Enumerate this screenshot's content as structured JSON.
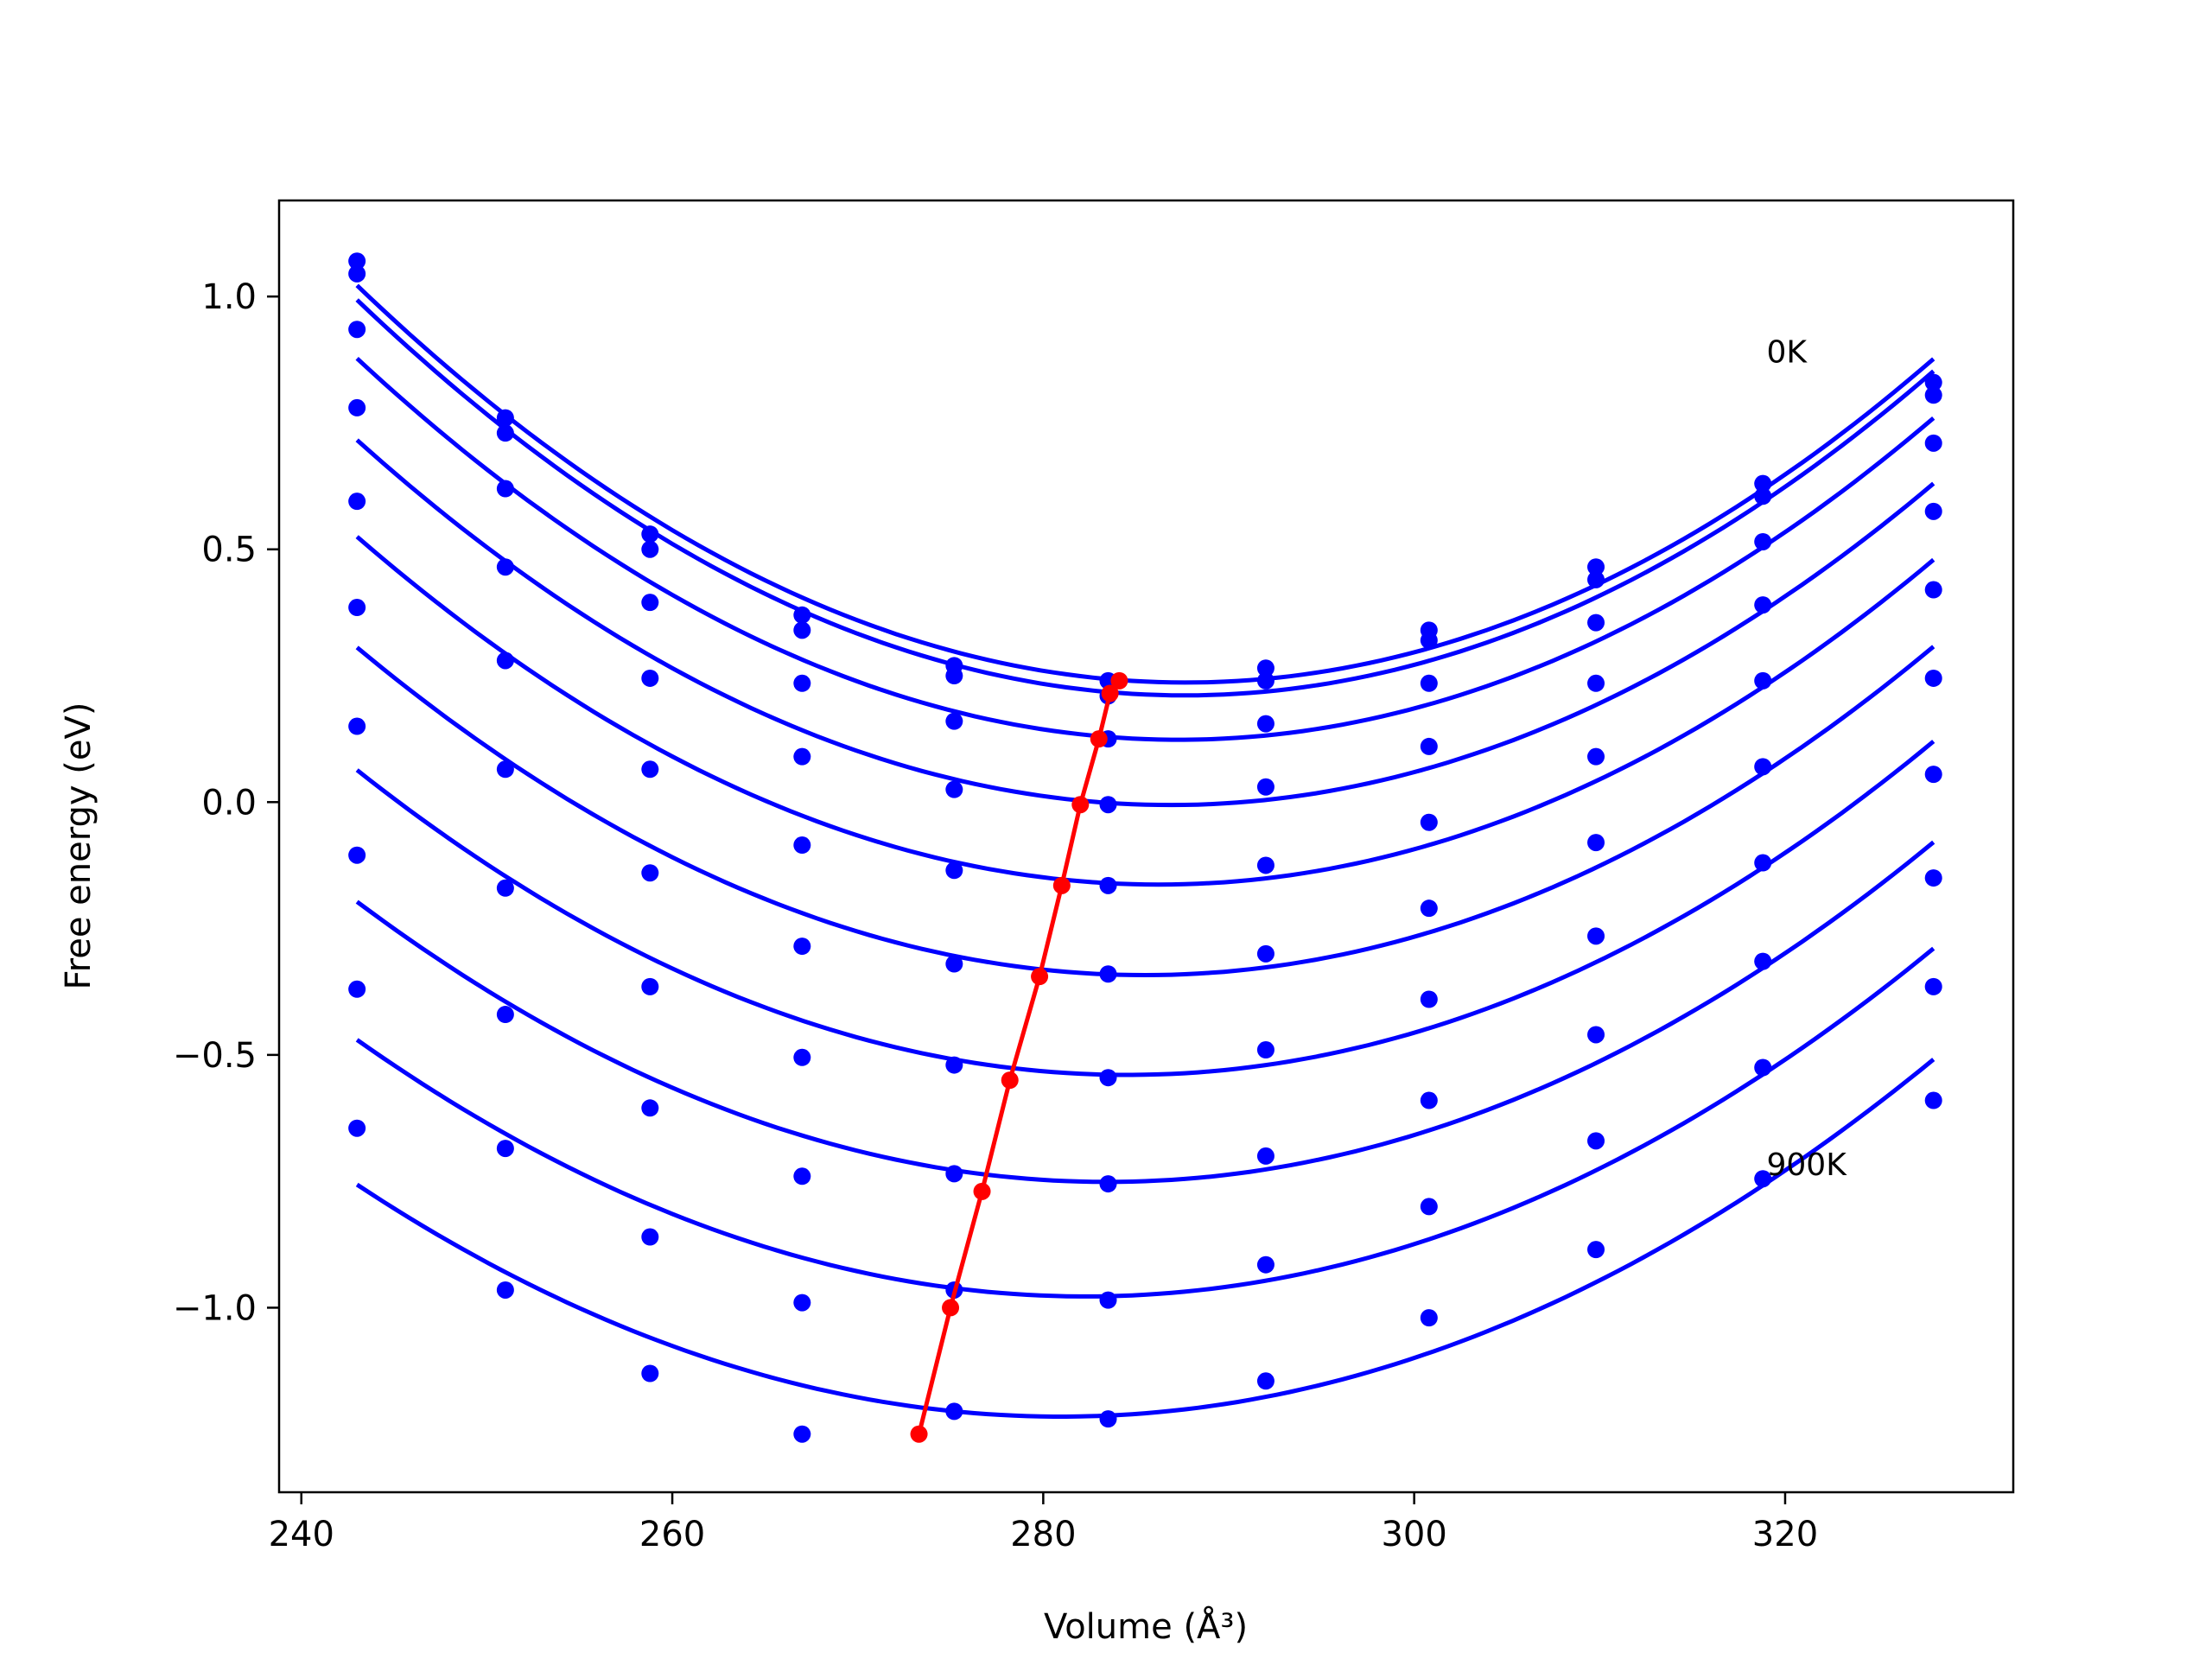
{
  "chart_data": {
    "type": "line",
    "xlabel": "Volume (Å³)",
    "ylabel": "Free energy (eV)",
    "xlim": [
      238.8,
      332.3
    ],
    "ylim": [
      -1.365,
      1.19
    ],
    "x_ticks": [
      {
        "value": 240,
        "label": "240"
      },
      {
        "value": 260,
        "label": "260"
      },
      {
        "value": 280,
        "label": "280"
      },
      {
        "value": 300,
        "label": "300"
      },
      {
        "value": 320,
        "label": "320"
      }
    ],
    "y_ticks": [
      {
        "value": 1.0,
        "label": "1.0"
      },
      {
        "value": 0.5,
        "label": "0.5"
      },
      {
        "value": 0.0,
        "label": "0.0"
      },
      {
        "value": -0.5,
        "label": "−0.5"
      },
      {
        "value": -1.0,
        "label": "−1.0"
      }
    ],
    "grid": false,
    "legend": "none",
    "annotations": [
      {
        "text": "0K",
        "x": 319.0,
        "y": 0.89
      },
      {
        "text": "900K",
        "x": 319.0,
        "y": -0.717
      }
    ],
    "colors": {
      "curve": "#0000ff",
      "minimum_line": "#ff0000"
    },
    "x": [
      243.0,
      251.0,
      258.8,
      267.0,
      275.2,
      283.5,
      292.0,
      300.8,
      309.8,
      318.8,
      328.0
    ],
    "series": [
      {
        "values": [
          1.07,
          0.76,
          0.53,
          0.37,
          0.27,
          0.24,
          0.265,
          0.34,
          0.465,
          0.63,
          0.83
        ]
      },
      {
        "values": [
          1.045,
          0.73,
          0.5,
          0.34,
          0.25,
          0.21,
          0.24,
          0.32,
          0.44,
          0.605,
          0.805
        ]
      },
      {
        "values": [
          0.935,
          0.62,
          0.395,
          0.235,
          0.16,
          0.125,
          0.155,
          0.235,
          0.355,
          0.515,
          0.71
        ]
      },
      {
        "values": [
          0.78,
          0.465,
          0.245,
          0.09,
          0.025,
          -0.005,
          0.03,
          0.11,
          0.235,
          0.39,
          0.575
        ]
      },
      {
        "values": [
          0.595,
          0.28,
          0.065,
          -0.085,
          -0.135,
          -0.165,
          -0.125,
          -0.04,
          0.09,
          0.24,
          0.42
        ]
      },
      {
        "values": [
          0.385,
          0.065,
          -0.14,
          -0.285,
          -0.32,
          -0.34,
          -0.3,
          -0.21,
          -0.08,
          0.07,
          0.245
        ]
      },
      {
        "values": [
          0.15,
          -0.17,
          -0.365,
          -0.505,
          -0.52,
          -0.545,
          -0.49,
          -0.39,
          -0.265,
          -0.12,
          0.055
        ]
      },
      {
        "values": [
          -0.105,
          -0.42,
          -0.605,
          -0.74,
          -0.735,
          -0.755,
          -0.7,
          -0.59,
          -0.46,
          -0.315,
          -0.15
        ]
      },
      {
        "values": [
          -0.37,
          -0.685,
          -0.86,
          -0.99,
          -0.965,
          -0.985,
          -0.915,
          -0.8,
          -0.67,
          -0.525,
          -0.365
        ]
      },
      {
        "values": [
          -0.645,
          -0.965,
          -1.13,
          -1.25,
          -1.205,
          -1.22,
          -1.145,
          -1.02,
          -0.885,
          -0.745,
          -0.59
        ]
      }
    ],
    "minimum_line": {
      "x": [
        284.1,
        283.6,
        283.0,
        282.0,
        281.0,
        279.8,
        278.2,
        276.7,
        275.0,
        273.3
      ],
      "y": [
        0.24,
        0.215,
        0.125,
        -0.005,
        -0.165,
        -0.345,
        -0.55,
        -0.77,
        -1.0,
        -1.25
      ]
    }
  }
}
